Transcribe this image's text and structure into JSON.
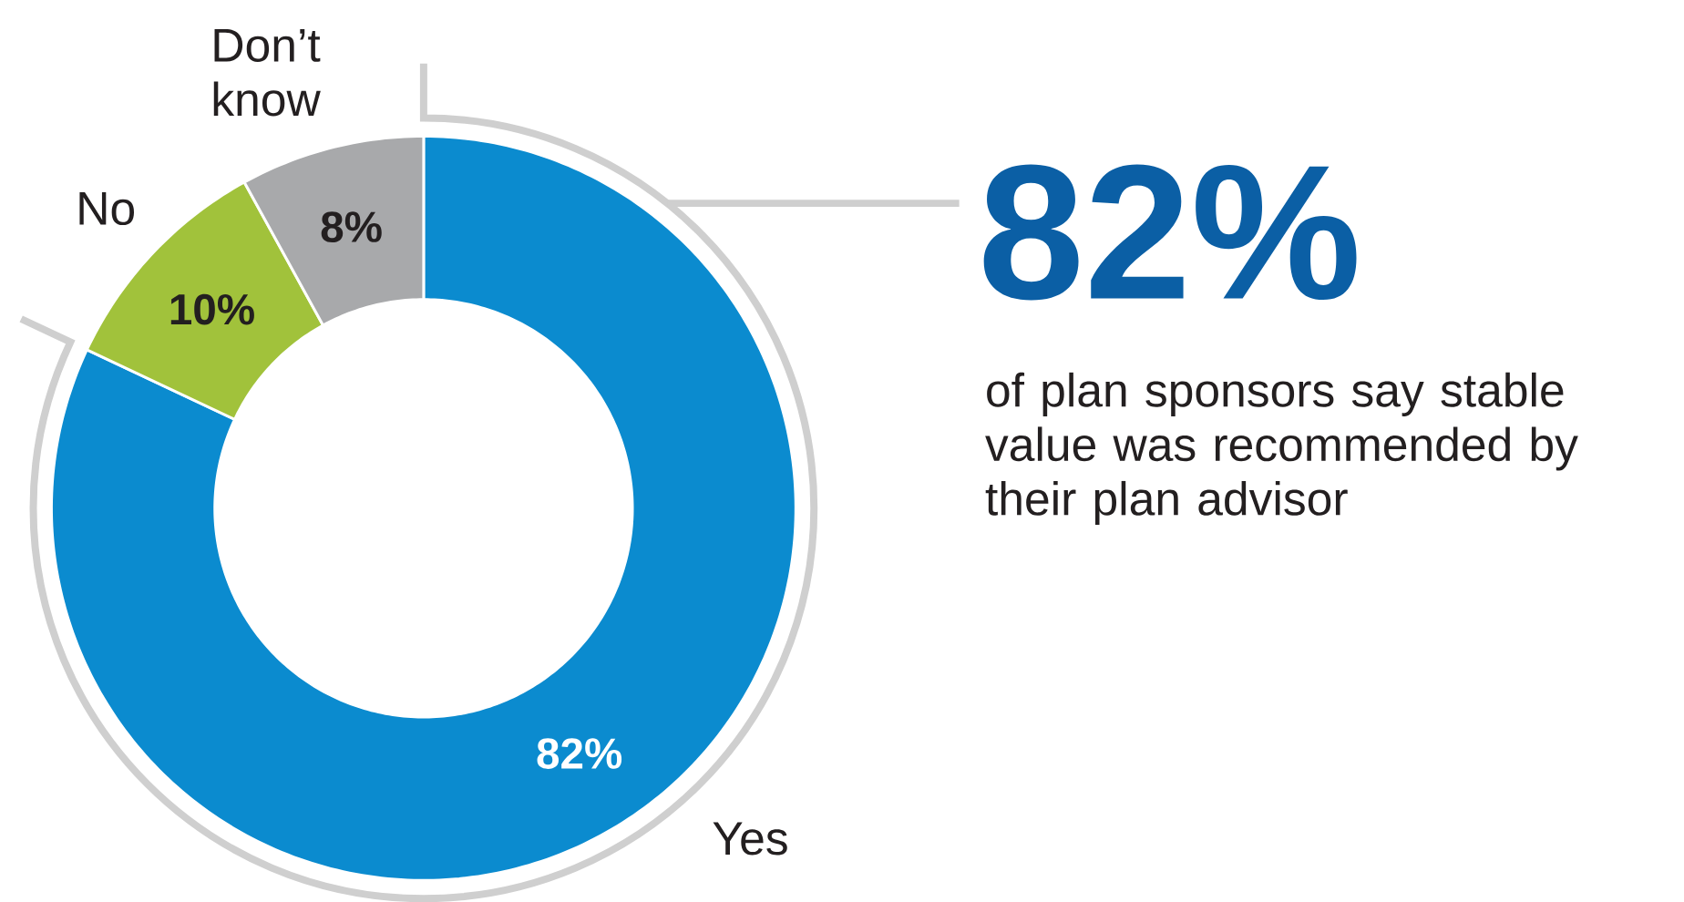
{
  "chart_data": {
    "type": "donut",
    "categories": [
      "Yes",
      "No",
      "Don’t know"
    ],
    "values": [
      82,
      10,
      8
    ],
    "value_labels": [
      "82%",
      "10%",
      "8%"
    ],
    "colors": [
      "#0b8bcf",
      "#a1c23b",
      "#a8a9ab"
    ],
    "annotations": [
      "82%",
      "of plan sponsors say stable value was recommended by their plan advisor"
    ]
  }
}
